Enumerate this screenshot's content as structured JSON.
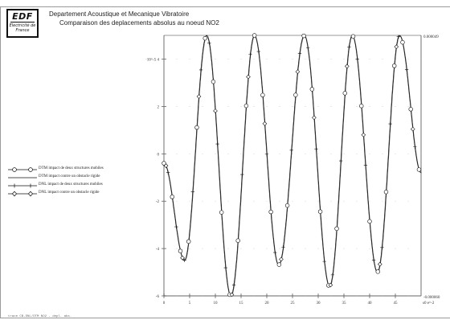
{
  "header": {
    "logo_text": "EDF",
    "logo_subtext": "Electricité de France",
    "line1": "Departement Acoustique et Mecanique Vibratoire",
    "line2": "Comparaison des deplacements absolus au noeud NO2"
  },
  "colors": {
    "line": "#111111",
    "frame": "#9a9a9a",
    "background": "#ffffff"
  },
  "chart_data": {
    "type": "line",
    "title": "Comparaison des deplacements absolus au noeud NO2",
    "xlim": [
      0,
      50
    ],
    "ylim": [
      -6e-05,
      5e-05
    ],
    "x_ticks": [
      "0",
      "5",
      "10",
      "15",
      "20",
      "25",
      "30",
      "35",
      "40",
      "45"
    ],
    "x_end_label": "s0 e^-2",
    "y_ticks": [
      "4",
      "2",
      "0",
      "-2",
      "-4",
      "-6"
    ],
    "y_top_label": "·10^-5 4",
    "right_top_label": "0.000049",
    "right_bottom_label": "-0.000060",
    "legend": [
      {
        "label": "DTM impact de deux structures mobiles",
        "marker": "circle"
      },
      {
        "label": "DTM impact contre un obstacle rigide",
        "marker": "none"
      },
      {
        "label": "DNL impact de deux structures mobiles",
        "marker": "plus"
      },
      {
        "label": "DNL impact contre un obstacle rigide",
        "marker": "diamond"
      }
    ],
    "peaks_x": [
      8.3,
      17.6,
      27.3,
      36.6,
      45.8
    ],
    "troughs_x": [
      4.0,
      13.0,
      22.3,
      32.2,
      41.5
    ],
    "start": {
      "x": 0,
      "y": -4e-06
    },
    "end": {
      "x": 50,
      "y": -8e-06
    },
    "peak_value": 5e-05,
    "trough_values": [
      -4.5e-05,
      -6e-05,
      -4.7e-05,
      -5.6e-05,
      -5e-05
    ]
  },
  "footer_text": "trace CB-DNL/DTM NO2 - depl. abs."
}
